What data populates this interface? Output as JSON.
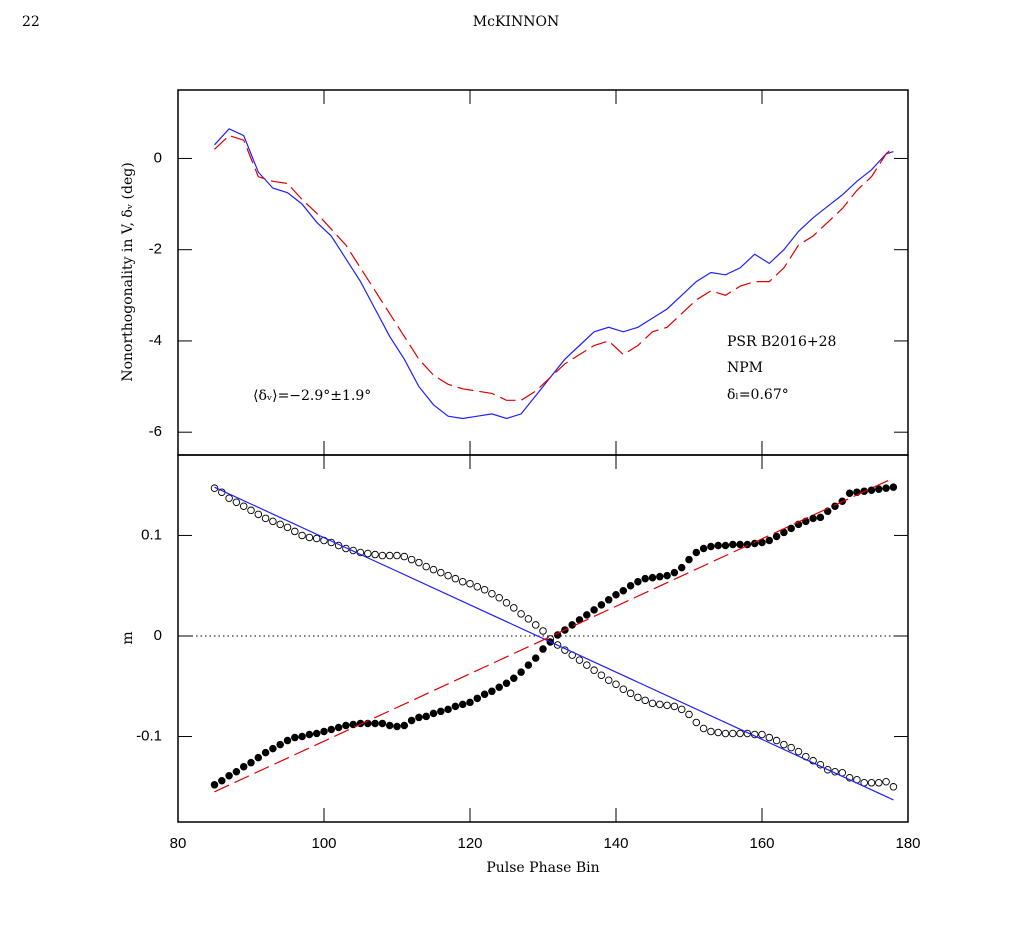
{
  "header": {
    "page_number": "22",
    "running_title": "McKINNON"
  },
  "chart_data": [
    {
      "type": "line",
      "y_label": "Nonorthogonality in V, δᵥ (deg)",
      "annotations": [
        "PSR B2016+28",
        "NPM",
        "δₗ=0.67°",
        "⟨δᵥ⟩=−2.9°±1.9°"
      ],
      "xlim": [
        80,
        180
      ],
      "ylim": [
        -6.5,
        1.5
      ],
      "yticks": [
        -6,
        -4,
        -2,
        0
      ],
      "x": [
        85,
        87,
        89,
        91,
        93,
        95,
        97,
        99,
        101,
        103,
        105,
        107,
        109,
        111,
        113,
        115,
        117,
        119,
        121,
        123,
        125,
        127,
        129,
        131,
        133,
        135,
        137,
        139,
        141,
        143,
        145,
        147,
        149,
        151,
        153,
        155,
        157,
        159,
        161,
        163,
        165,
        167,
        169,
        171,
        173,
        175,
        177,
        178
      ],
      "series": [
        {
          "color": "#1f1fff",
          "style": "solid",
          "values": [
            0.3,
            0.65,
            0.5,
            -0.3,
            -0.65,
            -0.75,
            -1.0,
            -1.4,
            -1.7,
            -2.2,
            -2.7,
            -3.3,
            -3.9,
            -4.4,
            -5.0,
            -5.4,
            -5.65,
            -5.7,
            -5.65,
            -5.6,
            -5.7,
            -5.6,
            -5.2,
            -4.8,
            -4.4,
            -4.1,
            -3.8,
            -3.7,
            -3.8,
            -3.7,
            -3.5,
            -3.3,
            -3.0,
            -2.7,
            -2.5,
            -2.55,
            -2.4,
            -2.1,
            -2.3,
            -2.0,
            -1.6,
            -1.3,
            -1.05,
            -0.8,
            -0.5,
            -0.25,
            0.1,
            0.15
          ]
        },
        {
          "color": "#e00000",
          "style": "dashed",
          "values": [
            0.2,
            0.5,
            0.4,
            -0.4,
            -0.5,
            -0.55,
            -0.9,
            -1.2,
            -1.55,
            -1.9,
            -2.4,
            -2.9,
            -3.4,
            -3.9,
            -4.4,
            -4.75,
            -4.95,
            -5.05,
            -5.1,
            -5.15,
            -5.3,
            -5.3,
            -5.1,
            -4.8,
            -4.5,
            -4.3,
            -4.1,
            -4.0,
            -4.3,
            -4.1,
            -3.8,
            -3.7,
            -3.4,
            -3.1,
            -2.9,
            -3.0,
            -2.8,
            -2.7,
            -2.7,
            -2.4,
            -1.9,
            -1.7,
            -1.4,
            -1.1,
            -0.7,
            -0.4,
            0.1,
            0.25
          ]
        }
      ]
    },
    {
      "type": "scatter",
      "x_label": "Pulse Phase Bin",
      "y_label": "m",
      "xlim": [
        80,
        180
      ],
      "xticks": [
        80,
        100,
        120,
        140,
        160,
        180
      ],
      "ylim": [
        -0.185,
        0.18
      ],
      "yticks": [
        -0.1,
        0,
        0.1
      ],
      "reference_line": 0,
      "x": [
        85,
        86,
        87,
        88,
        89,
        90,
        91,
        92,
        93,
        94,
        95,
        96,
        97,
        98,
        99,
        100,
        101,
        102,
        103,
        104,
        105,
        106,
        107,
        108,
        109,
        110,
        111,
        112,
        113,
        114,
        115,
        116,
        117,
        118,
        119,
        120,
        121,
        122,
        123,
        124,
        125,
        126,
        127,
        128,
        129,
        130,
        131,
        132,
        133,
        134,
        135,
        136,
        137,
        138,
        139,
        140,
        141,
        142,
        143,
        144,
        145,
        146,
        147,
        148,
        149,
        150,
        151,
        152,
        153,
        154,
        155,
        156,
        157,
        158,
        159,
        160,
        161,
        162,
        163,
        164,
        165,
        166,
        167,
        168,
        169,
        170,
        171,
        172,
        173,
        174,
        175,
        176,
        177,
        178
      ],
      "series": [
        {
          "marker": "open",
          "color": "#000000",
          "values": [
            0.147,
            0.143,
            0.137,
            0.133,
            0.129,
            0.125,
            0.121,
            0.117,
            0.114,
            0.111,
            0.108,
            0.104,
            0.1,
            0.098,
            0.097,
            0.095,
            0.093,
            0.09,
            0.087,
            0.085,
            0.083,
            0.082,
            0.081,
            0.08,
            0.08,
            0.08,
            0.079,
            0.076,
            0.073,
            0.069,
            0.066,
            0.063,
            0.06,
            0.057,
            0.054,
            0.052,
            0.049,
            0.046,
            0.042,
            0.038,
            0.033,
            0.028,
            0.022,
            0.017,
            0.011,
            0.005,
            -0.003,
            -0.009,
            -0.014,
            -0.019,
            -0.024,
            -0.029,
            -0.034,
            -0.039,
            -0.044,
            -0.048,
            -0.053,
            -0.057,
            -0.061,
            -0.064,
            -0.067,
            -0.068,
            -0.069,
            -0.07,
            -0.073,
            -0.078,
            -0.086,
            -0.092,
            -0.095,
            -0.096,
            -0.097,
            -0.097,
            -0.097,
            -0.097,
            -0.098,
            -0.098,
            -0.101,
            -0.104,
            -0.108,
            -0.111,
            -0.115,
            -0.12,
            -0.124,
            -0.128,
            -0.133,
            -0.135,
            -0.136,
            -0.141,
            -0.143,
            -0.146,
            -0.146,
            -0.146,
            -0.145,
            -0.15
          ]
        },
        {
          "marker": "filled",
          "color": "#000000",
          "values": [
            -0.148,
            -0.144,
            -0.139,
            -0.135,
            -0.13,
            -0.126,
            -0.121,
            -0.116,
            -0.112,
            -0.108,
            -0.104,
            -0.101,
            -0.1,
            -0.098,
            -0.097,
            -0.095,
            -0.093,
            -0.091,
            -0.089,
            -0.088,
            -0.087,
            -0.087,
            -0.087,
            -0.087,
            -0.089,
            -0.09,
            -0.089,
            -0.084,
            -0.081,
            -0.08,
            -0.077,
            -0.075,
            -0.073,
            -0.07,
            -0.068,
            -0.066,
            -0.062,
            -0.058,
            -0.055,
            -0.051,
            -0.047,
            -0.042,
            -0.036,
            -0.029,
            -0.022,
            -0.013,
            -0.006,
            0.001,
            0.006,
            0.011,
            0.016,
            0.021,
            0.026,
            0.031,
            0.036,
            0.041,
            0.045,
            0.05,
            0.054,
            0.057,
            0.058,
            0.059,
            0.06,
            0.063,
            0.068,
            0.076,
            0.083,
            0.087,
            0.089,
            0.09,
            0.09,
            0.091,
            0.091,
            0.091,
            0.092,
            0.093,
            0.095,
            0.099,
            0.103,
            0.107,
            0.111,
            0.114,
            0.117,
            0.118,
            0.124,
            0.129,
            0.134,
            0.142,
            0.143,
            0.144,
            0.145,
            0.146,
            0.147,
            0.148
          ]
        },
        {
          "marker": "none",
          "style": "solid",
          "color": "#1f1fff",
          "x": [
            85,
            178
          ],
          "values": [
            0.148,
            -0.163
          ]
        },
        {
          "marker": "none",
          "style": "dashed",
          "color": "#e00000",
          "x": [
            85,
            178
          ],
          "values": [
            -0.155,
            0.157
          ]
        }
      ]
    }
  ]
}
